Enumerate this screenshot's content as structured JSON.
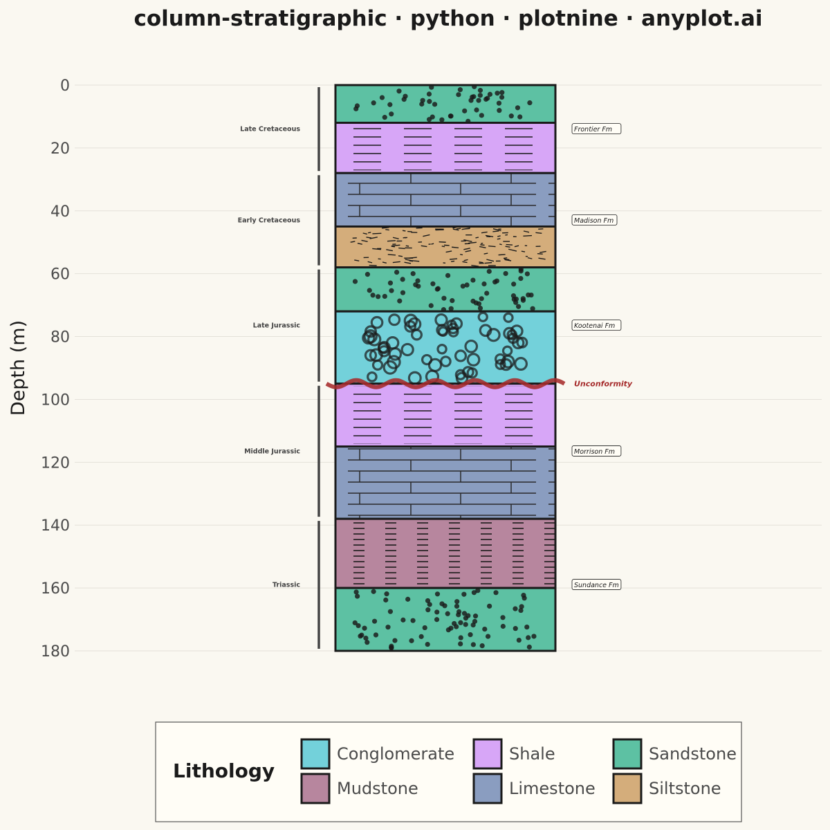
{
  "chart_data": {
    "type": "stratigraphic-column",
    "title": "column-stratigraphic · python · plotnine · anyplot.ai",
    "ylabel": "Depth (m)",
    "xlabel": "",
    "ylim": [
      0,
      180
    ],
    "y_reversed": true,
    "y_ticks": [
      0,
      20,
      40,
      60,
      80,
      100,
      120,
      140,
      160,
      180
    ],
    "grid": true,
    "layers": [
      {
        "top": 0,
        "bottom": 12,
        "lithology": "Sandstone"
      },
      {
        "top": 12,
        "bottom": 28,
        "lithology": "Shale"
      },
      {
        "top": 28,
        "bottom": 45,
        "lithology": "Limestone"
      },
      {
        "top": 45,
        "bottom": 58,
        "lithology": "Siltstone"
      },
      {
        "top": 58,
        "bottom": 72,
        "lithology": "Sandstone"
      },
      {
        "top": 72,
        "bottom": 95,
        "lithology": "Conglomerate"
      },
      {
        "top": 95,
        "bottom": 115,
        "lithology": "Shale"
      },
      {
        "top": 115,
        "bottom": 138,
        "lithology": "Limestone"
      },
      {
        "top": 138,
        "bottom": 160,
        "lithology": "Mudstone"
      },
      {
        "top": 160,
        "bottom": 180,
        "lithology": "Sandstone"
      }
    ],
    "ages": [
      {
        "name": "Late Cretaceous",
        "top": 0,
        "bottom": 28
      },
      {
        "name": "Early Cretaceous",
        "top": 28,
        "bottom": 58
      },
      {
        "name": "Late Jurassic",
        "top": 58,
        "bottom": 95
      },
      {
        "name": "Middle Jurassic",
        "top": 95,
        "bottom": 138
      },
      {
        "name": "Triassic",
        "top": 138,
        "bottom": 180
      }
    ],
    "formations": [
      {
        "name": "Frontier Fm",
        "depth": 14
      },
      {
        "name": "Madison Fm",
        "depth": 43
      },
      {
        "name": "Kootenai Fm",
        "depth": 76.5
      },
      {
        "name": "Morrison Fm",
        "depth": 116.5
      },
      {
        "name": "Sundance Fm",
        "depth": 159
      }
    ],
    "unconformity": {
      "label": "Unconformity",
      "depth": 95,
      "color": "#A62B2B"
    },
    "legend": {
      "title": "Lithology",
      "position": "bottom",
      "entries": [
        {
          "name": "Conglomerate",
          "color": "#73D1DA"
        },
        {
          "name": "Mudstone",
          "color": "#B7869E"
        },
        {
          "name": "Shale",
          "color": "#D7A6F7"
        },
        {
          "name": "Limestone",
          "color": "#8A9DC0"
        },
        {
          "name": "Sandstone",
          "color": "#5DC1A3"
        },
        {
          "name": "Siltstone",
          "color": "#D4AD7B"
        }
      ]
    }
  }
}
